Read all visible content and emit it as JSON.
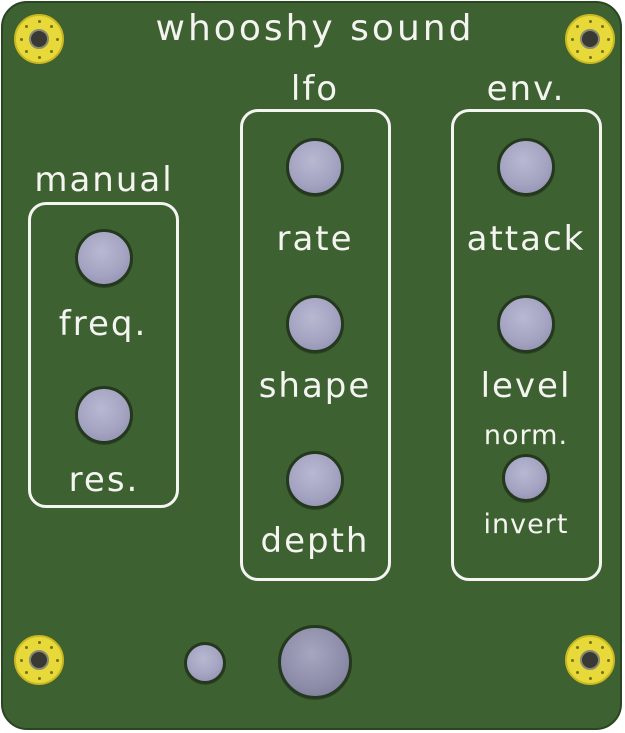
{
  "title": "whooshy sound",
  "sections": {
    "manual": {
      "heading": "manual",
      "labels": [
        "freq.",
        "res."
      ]
    },
    "lfo": {
      "heading": "lfo",
      "labels": [
        "rate",
        "shape",
        "depth"
      ]
    },
    "env": {
      "heading": "env.",
      "labels": [
        "attack",
        "level",
        "norm.",
        "invert"
      ]
    }
  },
  "colors": {
    "panel": "#3d6131",
    "text": "#f4f4f0",
    "knob": "#a4a4c2",
    "mounting_hole": "#e8d93a"
  }
}
